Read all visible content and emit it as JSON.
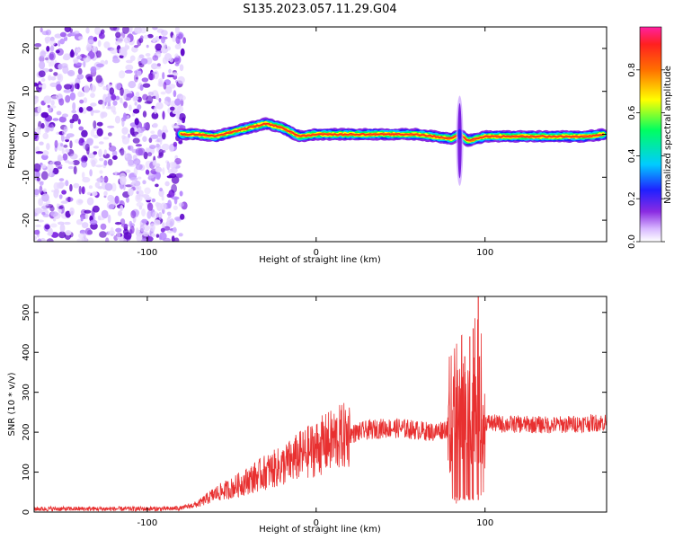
{
  "figure_title": "S135.2023.057.11.29.G04",
  "chart_data": [
    {
      "type": "heatmap",
      "xlabel": "Height of straight line (km)",
      "ylabel": "Frequency (Hz)",
      "xlim": [
        -167,
        172
      ],
      "ylim": [
        -25,
        25
      ],
      "xticks": [
        -100,
        0,
        100
      ],
      "yticks": [
        -20,
        -10,
        0,
        10,
        20
      ],
      "colorbar": {
        "label": "Normalized spectral amplitude",
        "range": [
          0,
          1
        ],
        "ticks": [
          0.0,
          0.2,
          0.4,
          0.6,
          0.8
        ]
      },
      "ridge": {
        "description_points_x": [
          -80,
          -70,
          -60,
          -50,
          -40,
          -30,
          -20,
          -10,
          0,
          20,
          40,
          60,
          70,
          80,
          85,
          90,
          100,
          120,
          140,
          160,
          170
        ],
        "frequency_hz": [
          0,
          0,
          -0.5,
          0.5,
          1.5,
          2.5,
          1.5,
          -0.5,
          0,
          0,
          0,
          0,
          -0.5,
          -1,
          0,
          -1.5,
          -0.5,
          -0.5,
          -0.5,
          -0.5,
          0
        ]
      },
      "noise_region_x": [
        -167,
        -78
      ],
      "spike_x": 85,
      "spike_range_hz": [
        -12,
        9
      ]
    },
    {
      "type": "line",
      "xlabel": "Height of straight line (km)",
      "ylabel": "SNR (10 * v/v)",
      "xlim": [
        -167,
        172
      ],
      "ylim": [
        0,
        540
      ],
      "xticks": [
        -100,
        0,
        100
      ],
      "yticks": [
        0,
        100,
        200,
        300,
        400,
        500
      ],
      "series": [
        {
          "color": "#e83030",
          "x": [
            -167,
            -140,
            -110,
            -90,
            -80,
            -70,
            -60,
            -50,
            -40,
            -30,
            -20,
            -10,
            0,
            10,
            20,
            30,
            40,
            50,
            60,
            70,
            80,
            85,
            90,
            95,
            100,
            110,
            120,
            140,
            160,
            172
          ],
          "y": [
            8,
            8,
            8,
            8,
            10,
            20,
            45,
            60,
            80,
            100,
            115,
            140,
            160,
            180,
            195,
            205,
            210,
            210,
            205,
            200,
            215,
            240,
            250,
            270,
            225,
            220,
            220,
            218,
            222,
            225
          ]
        }
      ],
      "spikes": [
        {
          "x": 82,
          "y": 330
        },
        {
          "x": 85,
          "y": 310
        },
        {
          "x": 88,
          "y": 390
        },
        {
          "x": 91,
          "y": 440
        },
        {
          "x": 93,
          "y": 460
        },
        {
          "x": 96,
          "y": 540
        }
      ]
    }
  ]
}
